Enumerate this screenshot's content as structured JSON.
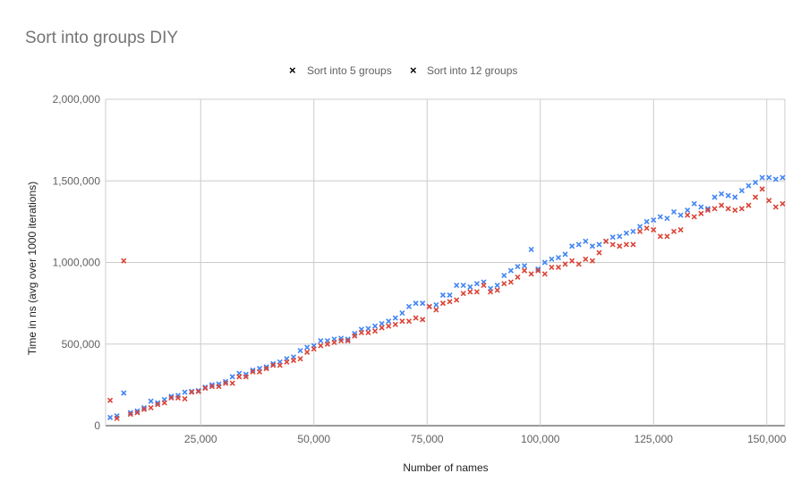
{
  "chart_data": {
    "type": "scatter",
    "title": "Sort into groups DIY",
    "xlabel": "Number of names",
    "ylabel": "Time in ns (avg over 1000 iterations)",
    "xlim": [
      4000,
      154000
    ],
    "ylim": [
      0,
      2000000
    ],
    "x_ticks": [
      25000,
      50000,
      75000,
      100000,
      125000,
      150000
    ],
    "x_tick_labels": [
      "25,000",
      "50,000",
      "75,000",
      "100,000",
      "125,000",
      "150,000"
    ],
    "y_ticks": [
      0,
      500000,
      1000000,
      1500000,
      2000000
    ],
    "y_tick_labels": [
      "0",
      "500,000",
      "1,000,000",
      "1,500,000",
      "2,000,000"
    ],
    "grid": true,
    "legend_position": "top",
    "marker": "×",
    "series": [
      {
        "name": "Sort into 5 groups",
        "color": "#4285f4",
        "points": [
          [
            5000,
            50000
          ],
          [
            6500,
            60000
          ],
          [
            8000,
            200000
          ],
          [
            9500,
            80000
          ],
          [
            11000,
            90000
          ],
          [
            12500,
            110000
          ],
          [
            14000,
            150000
          ],
          [
            15500,
            140000
          ],
          [
            17000,
            160000
          ],
          [
            18500,
            180000
          ],
          [
            20000,
            185000
          ],
          [
            21500,
            205000
          ],
          [
            23000,
            210000
          ],
          [
            24500,
            215000
          ],
          [
            26000,
            235000
          ],
          [
            27500,
            250000
          ],
          [
            29000,
            255000
          ],
          [
            30500,
            270000
          ],
          [
            32000,
            300000
          ],
          [
            33500,
            320000
          ],
          [
            35000,
            315000
          ],
          [
            36500,
            340000
          ],
          [
            38000,
            350000
          ],
          [
            39500,
            360000
          ],
          [
            41000,
            380000
          ],
          [
            42500,
            390000
          ],
          [
            44000,
            410000
          ],
          [
            45500,
            420000
          ],
          [
            47000,
            460000
          ],
          [
            48500,
            480000
          ],
          [
            50000,
            490000
          ],
          [
            51500,
            520000
          ],
          [
            53000,
            520000
          ],
          [
            54500,
            530000
          ],
          [
            56000,
            535000
          ],
          [
            57500,
            530000
          ],
          [
            59000,
            565000
          ],
          [
            60500,
            590000
          ],
          [
            62000,
            595000
          ],
          [
            63500,
            610000
          ],
          [
            65000,
            625000
          ],
          [
            66500,
            640000
          ],
          [
            68000,
            660000
          ],
          [
            69500,
            690000
          ],
          [
            71000,
            730000
          ],
          [
            72500,
            750000
          ],
          [
            74000,
            750000
          ],
          [
            75500,
            730000
          ],
          [
            77000,
            740000
          ],
          [
            78500,
            800000
          ],
          [
            80000,
            800000
          ],
          [
            81500,
            860000
          ],
          [
            83000,
            860000
          ],
          [
            84500,
            850000
          ],
          [
            86000,
            870000
          ],
          [
            87500,
            880000
          ],
          [
            89000,
            840000
          ],
          [
            90500,
            860000
          ],
          [
            92000,
            920000
          ],
          [
            93500,
            950000
          ],
          [
            95000,
            975000
          ],
          [
            96500,
            980000
          ],
          [
            98000,
            1080000
          ],
          [
            99500,
            960000
          ],
          [
            101000,
            1000000
          ],
          [
            102500,
            1020000
          ],
          [
            104000,
            1030000
          ],
          [
            105500,
            1050000
          ],
          [
            107000,
            1100000
          ],
          [
            108500,
            1110000
          ],
          [
            110000,
            1130000
          ],
          [
            111500,
            1100000
          ],
          [
            113000,
            1110000
          ],
          [
            114500,
            1130000
          ],
          [
            116000,
            1155000
          ],
          [
            117500,
            1160000
          ],
          [
            119000,
            1180000
          ],
          [
            120500,
            1190000
          ],
          [
            122000,
            1220000
          ],
          [
            123500,
            1250000
          ],
          [
            125000,
            1260000
          ],
          [
            126500,
            1280000
          ],
          [
            128000,
            1270000
          ],
          [
            129500,
            1310000
          ],
          [
            131000,
            1290000
          ],
          [
            132500,
            1320000
          ],
          [
            134000,
            1360000
          ],
          [
            135500,
            1340000
          ],
          [
            137000,
            1330000
          ],
          [
            138500,
            1400000
          ],
          [
            140000,
            1420000
          ],
          [
            141500,
            1410000
          ],
          [
            143000,
            1400000
          ],
          [
            144500,
            1440000
          ],
          [
            146000,
            1470000
          ],
          [
            147500,
            1490000
          ],
          [
            149000,
            1520000
          ],
          [
            150500,
            1520000
          ],
          [
            152000,
            1510000
          ],
          [
            153500,
            1520000
          ]
        ]
      },
      {
        "name": "Sort into 12 groups",
        "color": "#db4437",
        "points": [
          [
            5000,
            155000
          ],
          [
            6500,
            45000
          ],
          [
            8000,
            1010000
          ],
          [
            9500,
            70000
          ],
          [
            11000,
            80000
          ],
          [
            12500,
            100000
          ],
          [
            14000,
            110000
          ],
          [
            15500,
            130000
          ],
          [
            17000,
            140000
          ],
          [
            18500,
            170000
          ],
          [
            20000,
            170000
          ],
          [
            21500,
            165000
          ],
          [
            23000,
            205000
          ],
          [
            24500,
            210000
          ],
          [
            26000,
            230000
          ],
          [
            27500,
            240000
          ],
          [
            29000,
            240000
          ],
          [
            30500,
            260000
          ],
          [
            32000,
            260000
          ],
          [
            33500,
            300000
          ],
          [
            35000,
            300000
          ],
          [
            36500,
            330000
          ],
          [
            38000,
            330000
          ],
          [
            39500,
            350000
          ],
          [
            41000,
            370000
          ],
          [
            42500,
            370000
          ],
          [
            44000,
            390000
          ],
          [
            45500,
            400000
          ],
          [
            47000,
            410000
          ],
          [
            48500,
            450000
          ],
          [
            50000,
            470000
          ],
          [
            51500,
            490000
          ],
          [
            53000,
            500000
          ],
          [
            54500,
            510000
          ],
          [
            56000,
            520000
          ],
          [
            57500,
            520000
          ],
          [
            59000,
            550000
          ],
          [
            60500,
            570000
          ],
          [
            62000,
            570000
          ],
          [
            63500,
            580000
          ],
          [
            65000,
            600000
          ],
          [
            66500,
            610000
          ],
          [
            68000,
            620000
          ],
          [
            69500,
            640000
          ],
          [
            71000,
            640000
          ],
          [
            72500,
            660000
          ],
          [
            74000,
            650000
          ],
          [
            75500,
            730000
          ],
          [
            77000,
            710000
          ],
          [
            78500,
            750000
          ],
          [
            80000,
            760000
          ],
          [
            81500,
            770000
          ],
          [
            83000,
            810000
          ],
          [
            84500,
            820000
          ],
          [
            86000,
            820000
          ],
          [
            87500,
            860000
          ],
          [
            89000,
            820000
          ],
          [
            90500,
            830000
          ],
          [
            92000,
            870000
          ],
          [
            93500,
            880000
          ],
          [
            95000,
            910000
          ],
          [
            96500,
            950000
          ],
          [
            98000,
            930000
          ],
          [
            99500,
            950000
          ],
          [
            101000,
            930000
          ],
          [
            102500,
            970000
          ],
          [
            104000,
            970000
          ],
          [
            105500,
            990000
          ],
          [
            107000,
            1010000
          ],
          [
            108500,
            990000
          ],
          [
            110000,
            1020000
          ],
          [
            111500,
            1010000
          ],
          [
            113000,
            1060000
          ],
          [
            114500,
            1130000
          ],
          [
            116000,
            1110000
          ],
          [
            117500,
            1100000
          ],
          [
            119000,
            1110000
          ],
          [
            120500,
            1110000
          ],
          [
            122000,
            1190000
          ],
          [
            123500,
            1210000
          ],
          [
            125000,
            1200000
          ],
          [
            126500,
            1160000
          ],
          [
            128000,
            1160000
          ],
          [
            129500,
            1190000
          ],
          [
            131000,
            1200000
          ],
          [
            132500,
            1290000
          ],
          [
            134000,
            1280000
          ],
          [
            135500,
            1300000
          ],
          [
            137000,
            1320000
          ],
          [
            138500,
            1330000
          ],
          [
            140000,
            1350000
          ],
          [
            141500,
            1330000
          ],
          [
            143000,
            1320000
          ],
          [
            144500,
            1330000
          ],
          [
            146000,
            1350000
          ],
          [
            147500,
            1400000
          ],
          [
            149000,
            1450000
          ],
          [
            150500,
            1380000
          ],
          [
            152000,
            1340000
          ],
          [
            153500,
            1360000
          ]
        ]
      }
    ]
  }
}
